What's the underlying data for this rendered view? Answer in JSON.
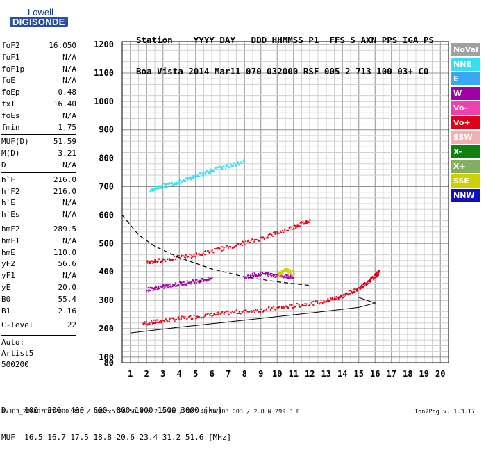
{
  "logo": {
    "top": "Lowell",
    "bottom": "DIGISONDE"
  },
  "header": {
    "line1": "Station    YYYY DAY   DDD HHMMSS P1  FFS S AXN PPS IGA PS",
    "line2": "Boa Vista 2014 Mar11 070 032000 RSF 005 2 713 100 03+ C0"
  },
  "params": [
    {
      "name": "foF2",
      "value": "16.050"
    },
    {
      "name": "foF1",
      "value": "N/A"
    },
    {
      "name": "foF1p",
      "value": "N/A"
    },
    {
      "name": "foE",
      "value": "N/A"
    },
    {
      "name": "foEp",
      "value": "0.48"
    },
    {
      "name": "fxI",
      "value": "16.40"
    },
    {
      "name": "foEs",
      "value": "N/A"
    },
    {
      "name": "fmin",
      "value": "1.75"
    },
    {
      "name": "MUF(D)",
      "value": "51.59",
      "sep": true
    },
    {
      "name": "M(D)",
      "value": "3.21"
    },
    {
      "name": "D",
      "value": "N/A"
    },
    {
      "name": "h`F",
      "value": "216.0",
      "sep": true
    },
    {
      "name": "h`F2",
      "value": "216.0"
    },
    {
      "name": "h`E",
      "value": "N/A"
    },
    {
      "name": "h`Es",
      "value": "N/A"
    },
    {
      "name": "hmF2",
      "value": "289.5",
      "sep": true
    },
    {
      "name": "hmF1",
      "value": "N/A"
    },
    {
      "name": "hmE",
      "value": "110.0"
    },
    {
      "name": "yF2",
      "value": "56.6"
    },
    {
      "name": "yF1",
      "value": "N/A"
    },
    {
      "name": "yE",
      "value": "20.0"
    },
    {
      "name": "B0",
      "value": "55.4"
    },
    {
      "name": "B1",
      "value": "2.16"
    },
    {
      "name": "C-level",
      "value": "22",
      "sep": true
    }
  ],
  "auto": {
    "line1": "Auto:",
    "line2": "Artist5",
    "line3": "500200"
  },
  "legend": [
    {
      "label": "NoVal",
      "color": "#a0a0a0"
    },
    {
      "label": "NNE",
      "color": "#33e0f0"
    },
    {
      "label": "E",
      "color": "#3aa8f0"
    },
    {
      "label": "W",
      "color": "#a000a8"
    },
    {
      "label": "Vo-",
      "color": "#f040b0"
    },
    {
      "label": "Vo+",
      "color": "#e00018"
    },
    {
      "label": "SSW",
      "color": "#f0b0b0"
    },
    {
      "label": "X-",
      "color": "#108010"
    },
    {
      "label": "X+",
      "color": "#80b060"
    },
    {
      "label": "SSE",
      "color": "#d0d000"
    },
    {
      "label": "NNW",
      "color": "#1010c0"
    }
  ],
  "bottom_scale": {
    "line1": "D    100  200  400  600  800 1000 1500 3000 [km]",
    "line2": "MUF  16.5 16.7 17.5 18.8 20.6 23.4 31.2 51.6 [MHz]"
  },
  "footer": {
    "left": "BVJ03_2014070032000.RSF / 384fx512h 50 kHz 2.5 km / DPS-4D BVJ03 003 / 2.8 N 299.3 E",
    "right": "Ion2Png v. 1.3.17"
  },
  "chart_data": {
    "type": "scatter",
    "xlim": [
      0.5,
      20.5
    ],
    "ylim": [
      80,
      1210
    ],
    "x_ticks": [
      1,
      2,
      3,
      4,
      5,
      6,
      7,
      8,
      9,
      10,
      11,
      12,
      13,
      14,
      15,
      16,
      17,
      18,
      19,
      20
    ],
    "y_ticks": [
      80,
      100,
      200,
      300,
      400,
      500,
      600,
      700,
      800,
      900,
      1000,
      1100,
      1200
    ],
    "grid": true,
    "series": [
      {
        "color": "#e00018",
        "points": [
          [
            1.75,
            220
          ],
          [
            3,
            230
          ],
          [
            5,
            245
          ],
          [
            7,
            258
          ],
          [
            9,
            268
          ],
          [
            11,
            282
          ],
          [
            13,
            300
          ],
          [
            14,
            318
          ],
          [
            15,
            345
          ],
          [
            15.5,
            365
          ],
          [
            16,
            390
          ],
          [
            16.2,
            400
          ]
        ]
      },
      {
        "color": "#e00018",
        "points": [
          [
            2,
            435
          ],
          [
            3,
            445
          ],
          [
            5,
            462
          ],
          [
            7,
            490
          ],
          [
            9,
            520
          ],
          [
            11,
            560
          ],
          [
            12,
            585
          ]
        ]
      },
      {
        "color": "#a000a8",
        "points": [
          [
            2,
            340
          ],
          [
            3,
            350
          ],
          [
            4,
            360
          ],
          [
            5,
            370
          ],
          [
            6,
            378
          ]
        ]
      },
      {
        "color": "#33e0f0",
        "points": [
          [
            2.2,
            690
          ],
          [
            3,
            705
          ],
          [
            4,
            720
          ],
          [
            5,
            740
          ],
          [
            6,
            760
          ],
          [
            7,
            775
          ],
          [
            8,
            790
          ]
        ]
      },
      {
        "color": "#a000a8",
        "points": [
          [
            8,
            385
          ],
          [
            9,
            395
          ],
          [
            10,
            390
          ],
          [
            11,
            385
          ]
        ]
      },
      {
        "color": "#d0d000",
        "points": [
          [
            10,
            390
          ],
          [
            10.5,
            410
          ],
          [
            11,
            395
          ]
        ]
      }
    ],
    "curves": [
      {
        "kind": "profile",
        "points": [
          [
            1,
            185
          ],
          [
            4,
            205
          ],
          [
            8,
            230
          ],
          [
            12,
            255
          ],
          [
            15,
            275
          ],
          [
            16,
            290
          ],
          [
            15.5,
            300
          ],
          [
            15,
            310
          ]
        ]
      },
      {
        "kind": "dashed",
        "points": [
          [
            0.5,
            600
          ],
          [
            1.5,
            530
          ],
          [
            2.5,
            490
          ],
          [
            4,
            450
          ],
          [
            6,
            410
          ],
          [
            8,
            382
          ],
          [
            10,
            365
          ],
          [
            12,
            352
          ]
        ]
      }
    ]
  }
}
